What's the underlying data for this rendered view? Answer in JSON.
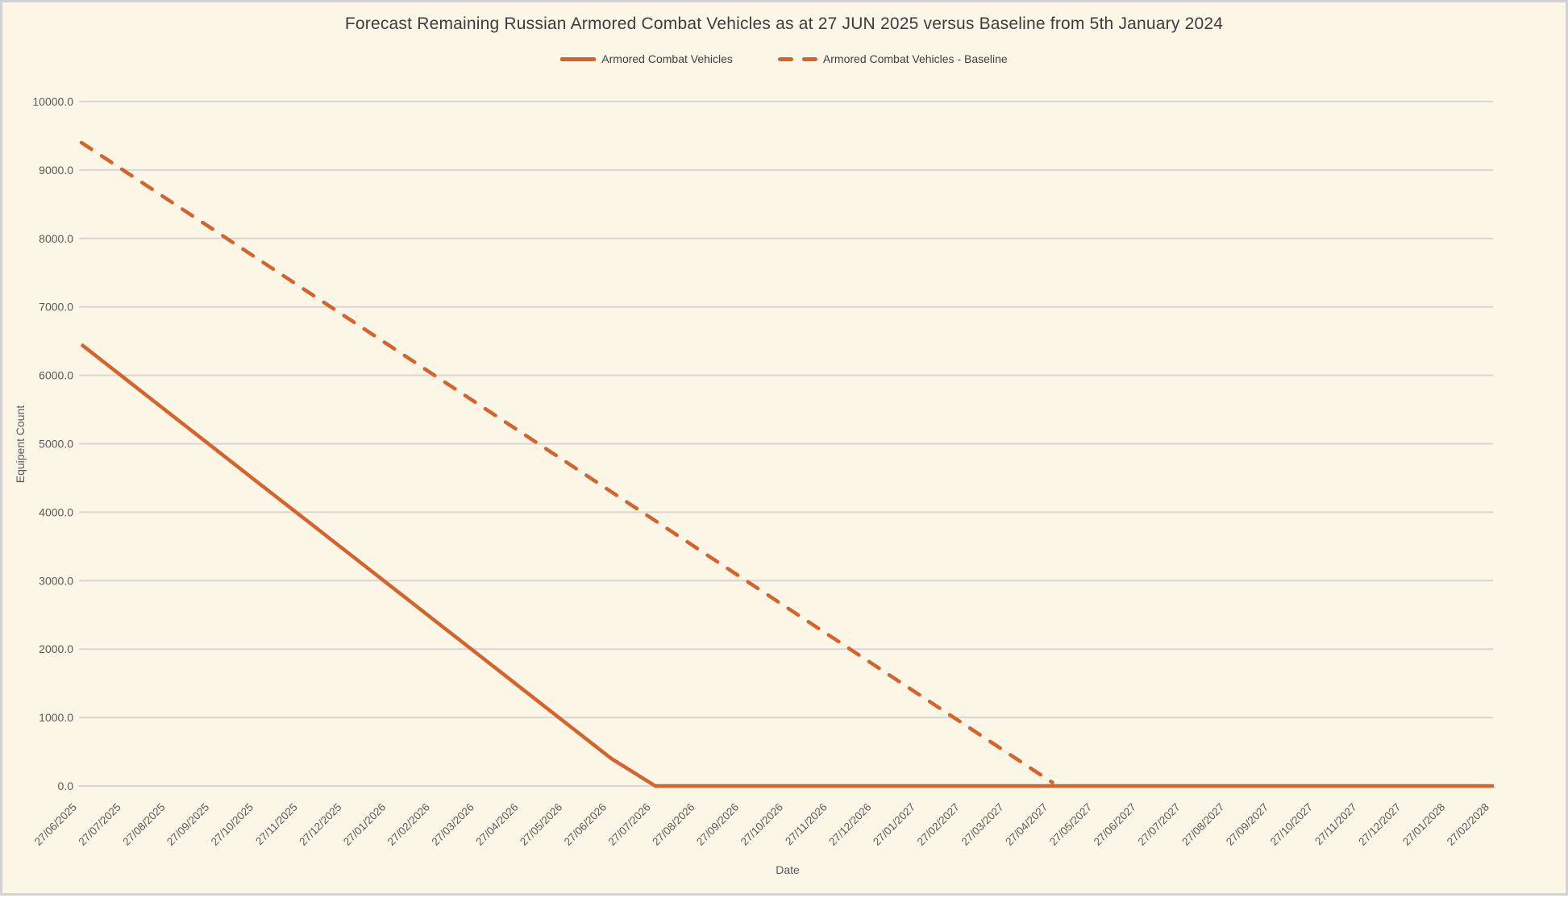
{
  "colors": {
    "accent": "#D5632E",
    "background": "#FCF6E6",
    "border": "#D2D2D2",
    "gridline": "#D8D6D2",
    "title_text": "#3D3D3D",
    "tick_text": "#595959"
  },
  "chart_data": {
    "type": "line",
    "title": "Forecast Remaining Russian Armored Combat Vehicles as at 27 JUN 2025 versus Baseline from 5th January 2024",
    "xlabel": "Date",
    "ylabel": "Equipent Count",
    "ylim": [
      0,
      10000
    ],
    "ytick_step": 1000,
    "grid": true,
    "legend_position": "top",
    "y_tick_labels": [
      "0.0",
      "1000.0",
      "2000.0",
      "3000.0",
      "4000.0",
      "5000.0",
      "6000.0",
      "7000.0",
      "8000.0",
      "9000.0",
      "10000.0"
    ],
    "x": [
      "27/06/2025",
      "27/07/2025",
      "27/08/2025",
      "27/09/2025",
      "27/10/2025",
      "27/11/2025",
      "27/12/2025",
      "27/01/2026",
      "27/02/2026",
      "27/03/2026",
      "27/04/2026",
      "27/05/2026",
      "27/06/2026",
      "27/07/2026",
      "27/08/2026",
      "27/09/2026",
      "27/10/2026",
      "27/11/2026",
      "27/12/2026",
      "27/01/2027",
      "27/02/2027",
      "27/03/2027",
      "27/04/2027",
      "27/05/2027",
      "27/06/2027",
      "27/07/2027",
      "27/08/2027",
      "27/09/2027",
      "27/10/2027",
      "27/11/2027",
      "27/12/2027",
      "27/01/2028",
      "27/02/2028"
    ],
    "series": [
      {
        "name": "Armored Combat Vehicles",
        "style": "solid",
        "color": "#D5632E",
        "values": [
          6450,
          5946,
          5442,
          4938,
          4434,
          3930,
          3427,
          2923,
          2419,
          1915,
          1411,
          907,
          403,
          0,
          0,
          0,
          0,
          0,
          0,
          0,
          0,
          0,
          0,
          0,
          0,
          0,
          0,
          0,
          0,
          0,
          0,
          0,
          0
        ]
      },
      {
        "name": "Armored Combat Vehicles - Baseline",
        "style": "dashed",
        "color": "#D5632E",
        "values": [
          9400,
          8975,
          8550,
          8125,
          7700,
          7275,
          6850,
          6425,
          6000,
          5575,
          5150,
          4725,
          4300,
          3875,
          3450,
          3025,
          2600,
          2175,
          1750,
          1325,
          900,
          475,
          50,
          null,
          null,
          null,
          null,
          null,
          null,
          null,
          null,
          null,
          null
        ]
      }
    ]
  }
}
